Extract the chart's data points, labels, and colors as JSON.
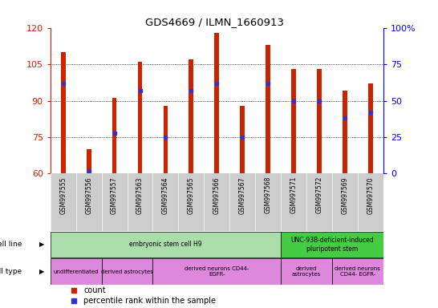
{
  "title": "GDS4669 / ILMN_1660913",
  "samples": [
    "GSM997555",
    "GSM997556",
    "GSM997557",
    "GSM997563",
    "GSM997564",
    "GSM997565",
    "GSM997566",
    "GSM997567",
    "GSM997568",
    "GSM997571",
    "GSM997572",
    "GSM997569",
    "GSM997570"
  ],
  "counts": [
    110,
    70,
    91,
    106,
    88,
    107,
    118,
    88,
    113,
    103,
    103,
    94,
    97
  ],
  "percentiles": [
    62,
    2,
    28,
    57,
    25,
    57,
    62,
    25,
    62,
    50,
    50,
    38,
    42
  ],
  "ymin": 60,
  "ymax": 120,
  "yticks": [
    60,
    75,
    90,
    105,
    120
  ],
  "right_yticks": [
    0,
    25,
    50,
    75,
    100
  ],
  "bar_color": "#cc2200",
  "marker_color": "#3333cc",
  "grid_color": "#000000",
  "bg_color": "#ffffff",
  "tick_bg_color": "#cccccc",
  "cell_line_groups": [
    {
      "label": "embryonic stem cell H9",
      "start": 0,
      "end": 8,
      "color": "#aaddaa"
    },
    {
      "label": "UNC-93B-deficient-induced\npluripotent stem",
      "start": 9,
      "end": 12,
      "color": "#44cc44"
    }
  ],
  "cell_type_groups": [
    {
      "label": "undifferentiated",
      "start": 0,
      "end": 1,
      "color": "#dd88dd"
    },
    {
      "label": "derived astrocytes",
      "start": 2,
      "end": 3,
      "color": "#dd88dd"
    },
    {
      "label": "derived neurons CD44-\nEGFR-",
      "start": 4,
      "end": 8,
      "color": "#dd88dd"
    },
    {
      "label": "derived\nastrocytes",
      "start": 9,
      "end": 10,
      "color": "#dd88dd"
    },
    {
      "label": "derived neurons\nCD44- EGFR-",
      "start": 11,
      "end": 12,
      "color": "#dd88dd"
    }
  ],
  "legend_count_color": "#cc2200",
  "legend_pct_color": "#3333cc",
  "bar_width": 0.18
}
